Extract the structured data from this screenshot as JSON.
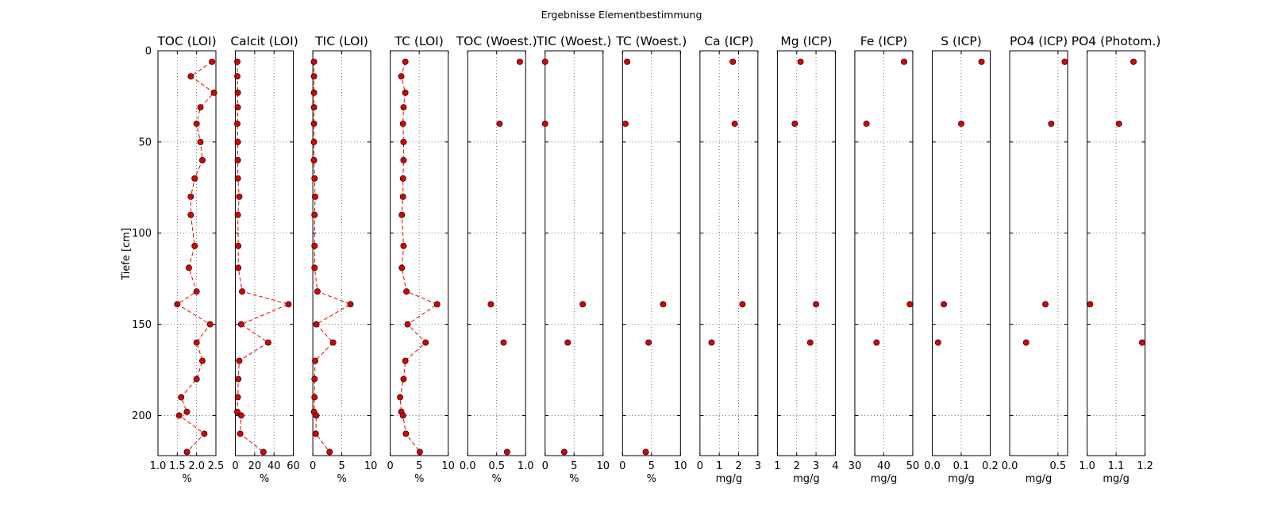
{
  "chart_data": {
    "type": "scatter",
    "suptitle": "Ergebnisse Elementbestimmung",
    "ylabel": "Tiefe [cm]",
    "ylim": [
      0,
      222
    ],
    "yticks": [
      0,
      50,
      100,
      150,
      200
    ],
    "grid": true,
    "marker_color": "#dd0000",
    "line_color": "#ee0000",
    "panels": [
      {
        "title": "TOC (LOI)",
        "xlabel": "%",
        "xlim": [
          1.0,
          2.5
        ],
        "xticks": [
          1.0,
          1.5,
          2.0,
          2.5
        ],
        "xticklabels": [
          "1.0",
          "1.5",
          "2.0",
          "2.5"
        ],
        "connected": true,
        "points": [
          [
            2.4,
            6
          ],
          [
            1.85,
            14
          ],
          [
            2.45,
            23
          ],
          [
            2.1,
            31
          ],
          [
            2.0,
            40
          ],
          [
            2.1,
            50
          ],
          [
            2.15,
            60
          ],
          [
            1.95,
            70
          ],
          [
            1.85,
            80
          ],
          [
            1.85,
            90
          ],
          [
            1.95,
            107
          ],
          [
            1.8,
            119
          ],
          [
            2.0,
            132
          ],
          [
            1.5,
            139
          ],
          [
            2.35,
            150
          ],
          [
            2.0,
            160
          ],
          [
            2.15,
            170
          ],
          [
            2.0,
            180
          ],
          [
            1.6,
            190
          ],
          [
            1.75,
            198
          ],
          [
            1.55,
            200
          ],
          [
            2.2,
            210
          ],
          [
            1.75,
            220
          ]
        ]
      },
      {
        "title": "Calcit (LOI)",
        "xlabel": "%",
        "xlim": [
          0,
          60
        ],
        "xticks": [
          0,
          20,
          40,
          60
        ],
        "xticklabels": [
          "0",
          "20",
          "40",
          "60"
        ],
        "connected": true,
        "points": [
          [
            2,
            6
          ],
          [
            2,
            14
          ],
          [
            2.5,
            23
          ],
          [
            2.5,
            31
          ],
          [
            2,
            40
          ],
          [
            2.5,
            50
          ],
          [
            2.5,
            60
          ],
          [
            2.5,
            70
          ],
          [
            4,
            80
          ],
          [
            2.5,
            90
          ],
          [
            3,
            107
          ],
          [
            3,
            119
          ],
          [
            7,
            132
          ],
          [
            55,
            139
          ],
          [
            6,
            150
          ],
          [
            34,
            160
          ],
          [
            4,
            170
          ],
          [
            3,
            180
          ],
          [
            2.5,
            190
          ],
          [
            2,
            198
          ],
          [
            6,
            200
          ],
          [
            5,
            210
          ],
          [
            29,
            220
          ]
        ]
      },
      {
        "title": "TIC (LOI)",
        "xlabel": "%",
        "xlim": [
          0,
          10
        ],
        "xticks": [
          0,
          5,
          10
        ],
        "xticklabels": [
          "0",
          "5",
          "10"
        ],
        "connected": true,
        "points": [
          [
            0.2,
            6
          ],
          [
            0.2,
            14
          ],
          [
            0.2,
            23
          ],
          [
            0.2,
            31
          ],
          [
            0.2,
            40
          ],
          [
            0.2,
            50
          ],
          [
            0.2,
            60
          ],
          [
            0.3,
            70
          ],
          [
            0.4,
            80
          ],
          [
            0.3,
            90
          ],
          [
            0.3,
            107
          ],
          [
            0.3,
            119
          ],
          [
            0.8,
            132
          ],
          [
            6.5,
            139
          ],
          [
            0.6,
            150
          ],
          [
            3.5,
            160
          ],
          [
            0.4,
            170
          ],
          [
            0.3,
            180
          ],
          [
            0.3,
            190
          ],
          [
            0.2,
            198
          ],
          [
            0.6,
            200
          ],
          [
            0.5,
            210
          ],
          [
            2.9,
            220
          ]
        ]
      },
      {
        "title": "TC (LOI)",
        "xlabel": "%",
        "xlim": [
          0,
          10
        ],
        "xticks": [
          0,
          5,
          10
        ],
        "xticklabels": [
          "0",
          "5",
          "10"
        ],
        "connected": true,
        "points": [
          [
            2.6,
            6
          ],
          [
            1.9,
            14
          ],
          [
            2.6,
            23
          ],
          [
            2.3,
            31
          ],
          [
            2.2,
            40
          ],
          [
            2.3,
            50
          ],
          [
            2.3,
            60
          ],
          [
            2.2,
            70
          ],
          [
            2.2,
            80
          ],
          [
            2.0,
            90
          ],
          [
            2.3,
            107
          ],
          [
            2.0,
            119
          ],
          [
            2.8,
            132
          ],
          [
            8.1,
            139
          ],
          [
            3.0,
            150
          ],
          [
            6.1,
            160
          ],
          [
            2.6,
            170
          ],
          [
            2.3,
            180
          ],
          [
            1.7,
            190
          ],
          [
            1.9,
            198
          ],
          [
            2.2,
            200
          ],
          [
            2.7,
            210
          ],
          [
            5.1,
            220
          ]
        ]
      },
      {
        "title": "TOC (Woest.)",
        "xlabel": "%",
        "xlim": [
          0.0,
          1.0
        ],
        "xticks": [
          0.0,
          0.5,
          1.0
        ],
        "xticklabels": [
          "0.0",
          "0.5",
          "1.0"
        ],
        "connected": false,
        "points": [
          [
            0.9,
            6
          ],
          [
            0.55,
            40
          ],
          [
            0.4,
            139
          ],
          [
            0.62,
            160
          ],
          [
            0.68,
            220
          ]
        ]
      },
      {
        "title": "TIC (Woest.)",
        "xlabel": "%",
        "xlim": [
          0,
          10
        ],
        "xticks": [
          0,
          5,
          10
        ],
        "xticklabels": [
          "0",
          "5",
          "10"
        ],
        "connected": false,
        "points": [
          [
            0,
            6
          ],
          [
            0,
            40
          ],
          [
            6.5,
            139
          ],
          [
            3.9,
            160
          ],
          [
            3.3,
            220
          ]
        ]
      },
      {
        "title": "TC (Woest.)",
        "xlabel": "%",
        "xlim": [
          0,
          10
        ],
        "xticks": [
          0,
          5,
          10
        ],
        "xticklabels": [
          "0",
          "5",
          "10"
        ],
        "connected": false,
        "points": [
          [
            0.8,
            6
          ],
          [
            0.5,
            40
          ],
          [
            7.0,
            139
          ],
          [
            4.5,
            160
          ],
          [
            4.0,
            220
          ]
        ]
      },
      {
        "title": "Ca (ICP)",
        "xlabel": "mg/g",
        "xlim": [
          0,
          3
        ],
        "xticks": [
          0,
          1,
          2,
          3
        ],
        "xticklabels": [
          "0",
          "1",
          "2",
          "3"
        ],
        "connected": false,
        "points": [
          [
            1.7,
            6
          ],
          [
            1.8,
            40
          ],
          [
            2.2,
            139
          ],
          [
            0.6,
            160
          ]
        ]
      },
      {
        "title": "Mg (ICP)",
        "xlabel": "mg/g",
        "xlim": [
          1,
          4
        ],
        "xticks": [
          1,
          2,
          3,
          4
        ],
        "xticklabels": [
          "1",
          "2",
          "3",
          "4"
        ],
        "connected": false,
        "points": [
          [
            2.2,
            6
          ],
          [
            1.9,
            40
          ],
          [
            3.0,
            139
          ],
          [
            2.7,
            160
          ]
        ]
      },
      {
        "title": "Fe (ICP)",
        "xlabel": "mg/g",
        "xlim": [
          30,
          50
        ],
        "xticks": [
          30,
          40,
          50
        ],
        "xticklabels": [
          "30",
          "40",
          "50"
        ],
        "connected": false,
        "points": [
          [
            47,
            6
          ],
          [
            34,
            40
          ],
          [
            49,
            139
          ],
          [
            37.5,
            160
          ]
        ]
      },
      {
        "title": "S (ICP)",
        "xlabel": "mg/g",
        "xlim": [
          0.0,
          0.2
        ],
        "xticks": [
          0.0,
          0.1,
          0.2
        ],
        "xticklabels": [
          "0.0",
          "0.1",
          "0.2"
        ],
        "connected": false,
        "points": [
          [
            0.17,
            6
          ],
          [
            0.1,
            40
          ],
          [
            0.04,
            139
          ],
          [
            0.02,
            160
          ]
        ]
      },
      {
        "title": "PO4 (ICP)",
        "xlabel": "mg/g",
        "xlim": [
          0.0,
          0.6
        ],
        "xticks": [
          0.0,
          0.5
        ],
        "xticklabels": [
          "0.0",
          "0.5"
        ],
        "connected": false,
        "points": [
          [
            0.57,
            6
          ],
          [
            0.43,
            40
          ],
          [
            0.37,
            139
          ],
          [
            0.17,
            160
          ]
        ]
      },
      {
        "title": "PO4 (Photom.)",
        "xlabel": "mg/g",
        "xlim": [
          1.0,
          1.2
        ],
        "xticks": [
          1.0,
          1.1,
          1.2
        ],
        "xticklabels": [
          "1.0",
          "1.1",
          "1.2"
        ],
        "connected": false,
        "points": [
          [
            1.16,
            6
          ],
          [
            1.11,
            40
          ],
          [
            1.01,
            139
          ],
          [
            1.19,
            160
          ]
        ]
      }
    ]
  }
}
